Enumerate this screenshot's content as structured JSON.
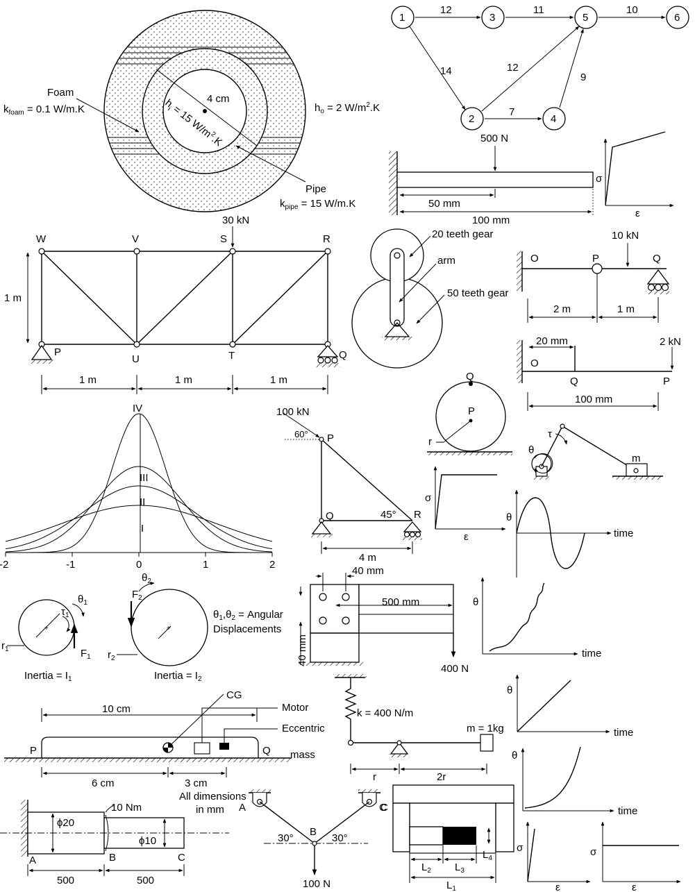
{
  "pipe": {
    "foam": "Foam",
    "k_foam_pre": "k",
    "k_foam_sub": "foam",
    "k_foam_val": " = 0.1 W/m.K",
    "radius": "4 cm",
    "hi_pre": "h",
    "hi_sub": "i",
    "hi_val": " = 15 W/m",
    "hi_sup": "2",
    "hi_end": ".K",
    "ho_pre": "h",
    "ho_sub": "o",
    "ho_val": " = 2 W/m",
    "ho_sup": "2",
    "ho_end": ".K",
    "pipe": "Pipe",
    "k_pipe_pre": "k",
    "k_pipe_sub": "pipe",
    "k_pipe_val": " = 15 W/m.K"
  },
  "network": {
    "nodes": [
      "1",
      "2",
      "3",
      "4",
      "5",
      "6"
    ],
    "edges": [
      {
        "label": "12"
      },
      {
        "label": "11"
      },
      {
        "label": "10"
      },
      {
        "label": "14"
      },
      {
        "label": "12"
      },
      {
        "label": "7"
      },
      {
        "label": "9"
      }
    ]
  },
  "cantilever": {
    "load": "500 N",
    "d1": "50 mm",
    "d2": "100 mm",
    "sigma": "σ",
    "eps": "ε"
  },
  "truss": {
    "load": "30 kN",
    "W": "W",
    "V": "V",
    "S": "S",
    "R": "R",
    "P": "P",
    "U": "U",
    "T": "T",
    "Q": "Q",
    "height": "1 m",
    "span1": "1 m",
    "span2": "1 m",
    "span3": "1 m"
  },
  "gears": {
    "g20": "20 teeth gear",
    "arm": "arm",
    "g50": "50 teeth gear"
  },
  "beam_opq": {
    "load": "10 kN",
    "O": "O",
    "P": "P",
    "Q": "Q",
    "d1": "2 m",
    "d2": "1 m"
  },
  "beam_oqp": {
    "d1": "20 mm",
    "load": "2 kN",
    "O": "O",
    "Q": "Q",
    "P": "P",
    "len": "100 mm"
  },
  "curves": {
    "IV": "IV",
    "III": "III",
    "II": "II",
    "I": "I",
    "ticks": [
      "-2",
      "-1",
      "0",
      "1",
      "2"
    ],
    "peaks": [
      0.34,
      0.48,
      0.62,
      1.0
    ]
  },
  "truss_pqr": {
    "load": "100 kN",
    "angle": "60°",
    "P": "P",
    "Q": "Q",
    "R": "R",
    "angle2": "45°",
    "len": "4 m"
  },
  "disc": {
    "Q": "Q",
    "P": "P",
    "r": "r"
  },
  "crank": {
    "theta": "θ",
    "tau": "τ",
    "m": "m"
  },
  "graphs": {
    "sigma": "σ",
    "eps": "ε",
    "theta": "θ",
    "time": "time"
  },
  "rotors": {
    "theta1": "θ",
    "theta1_sub": "1",
    "tau1": "τ",
    "tau1_sub": "1",
    "r1": "r",
    "r1_sub": "1",
    "F1": "F",
    "F1_sub": "1",
    "inertia1": "Inertia = I",
    "inertia1_sub": "1",
    "theta2": "θ",
    "theta2_sub": "2",
    "F2": "F",
    "F2_sub": "2",
    "r2": "r",
    "r2_sub": "2",
    "inertia2": "Inertia = I",
    "inertia2_sub": "2",
    "note1": "θ",
    "note1_sub1": "1",
    "note1_mid": ",θ",
    "note1_sub2": "2",
    "note1_end": " = Angular",
    "note2": "Displacements"
  },
  "bracket": {
    "d40a": "40 mm",
    "d500": "500 mm",
    "d40b": "40 mm",
    "load": "400 N"
  },
  "plate": {
    "len": "10 cm",
    "CG": "CG",
    "motor": "Motor",
    "ecc": "Eccentric",
    "mass": "mass",
    "P": "P",
    "Q": "Q",
    "d6": "6 cm",
    "d3": "3 cm"
  },
  "lever": {
    "k": "k = 400 N/m",
    "m": "m = 1kg",
    "r": "r",
    "r2": "2r"
  },
  "shaft": {
    "torque": "10 Nm",
    "d20": "ϕ20",
    "d10": "ϕ10",
    "A": "A",
    "B": "B",
    "C": "C",
    "l1": "500",
    "l2": "500",
    "note1": "All dimensions",
    "note2": "in mm"
  },
  "vframe": {
    "A": "A",
    "B": "B",
    "C": "C",
    "a1": "30°",
    "a2": "30°",
    "load": "100 N"
  },
  "blocks": {
    "C": "C",
    "L1": "L",
    "L1s": "1",
    "L2": "L",
    "L2s": "2",
    "L3": "L",
    "L3s": "3",
    "L4": "L",
    "L4s": "4"
  }
}
